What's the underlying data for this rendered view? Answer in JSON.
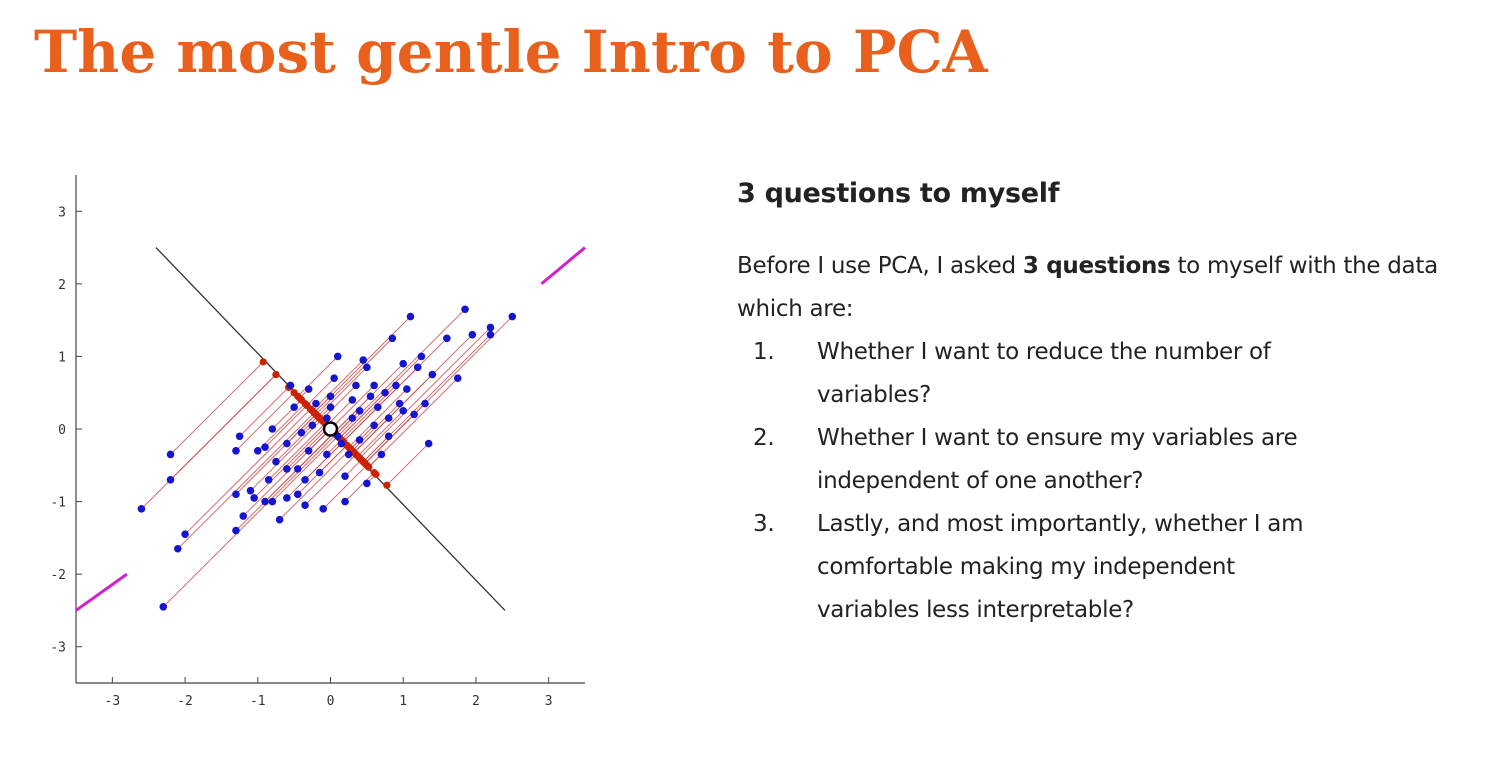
{
  "slide": {
    "title": "The most gentle Intro to PCA",
    "title_color": "#e8601c"
  },
  "section": {
    "heading": "3 questions to myself",
    "intro_before": "Before I use PCA, I asked ",
    "intro_bold": "3 questions",
    "intro_after": " to myself with the data which are:",
    "questions": [
      {
        "number": "1.",
        "text": "Whether I want to reduce the number of variables?"
      },
      {
        "number": "2.",
        "text": "Whether I want to ensure my variables are independent of one another?"
      },
      {
        "number": "3.",
        "text": "Lastly, and most importantly, whether I am comfortable making my independent variables less interpretable?"
      }
    ]
  },
  "chart_data": {
    "type": "scatter",
    "title": "",
    "xlabel": "",
    "ylabel": "",
    "xlim": [
      -3.5,
      3.5
    ],
    "ylim": [
      -3.5,
      3.5
    ],
    "xticks": [
      "-3",
      "-2",
      "-1",
      "0",
      "1",
      "2",
      "3"
    ],
    "yticks": [
      "3",
      "2",
      "1",
      "0",
      "-1",
      "-2",
      "-3"
    ],
    "grid": false,
    "colors": {
      "points": "#1515d0",
      "projection_lines": "#d04040",
      "projections": "#cc2200",
      "principal_axis": "#d020d0",
      "orthogonal_axis": "#333333",
      "mean_marker": "#000000"
    },
    "mean": [
      0.0,
      0.0
    ],
    "principal_axis_direction": [
      0.707,
      0.707
    ],
    "principal_axis_segments": [
      [
        [
          -3.5,
          -2.5
        ],
        [
          -2.8,
          -2.0
        ]
      ],
      [
        [
          2.9,
          2.0
        ],
        [
          3.5,
          2.5
        ]
      ]
    ],
    "orthogonal_axis_segment": [
      [
        -2.4,
        2.5
      ],
      [
        2.4,
        -2.5
      ]
    ],
    "points": [
      [
        -2.6,
        -1.1
      ],
      [
        -2.2,
        -0.7
      ],
      [
        -2.2,
        -0.35
      ],
      [
        -2.3,
        -2.45
      ],
      [
        -2.1,
        -1.65
      ],
      [
        -2.0,
        -1.45
      ],
      [
        -1.3,
        -1.4
      ],
      [
        -1.2,
        -1.2
      ],
      [
        -1.3,
        -0.9
      ],
      [
        -1.1,
        -0.85
      ],
      [
        -1.05,
        -0.95
      ],
      [
        -1.25,
        -0.1
      ],
      [
        -1.3,
        -0.3
      ],
      [
        -0.9,
        -0.25
      ],
      [
        -0.8,
        0.0
      ],
      [
        -0.75,
        -0.45
      ],
      [
        -0.85,
        -0.7
      ],
      [
        -0.8,
        -1.0
      ],
      [
        -0.7,
        -1.25
      ],
      [
        -0.6,
        -0.95
      ],
      [
        -0.6,
        -0.2
      ],
      [
        -0.5,
        0.3
      ],
      [
        -0.55,
        0.6
      ],
      [
        -0.45,
        -0.55
      ],
      [
        -0.45,
        -0.9
      ],
      [
        -0.35,
        -1.05
      ],
      [
        -0.3,
        -0.3
      ],
      [
        -0.25,
        0.05
      ],
      [
        -0.3,
        0.55
      ],
      [
        -0.2,
        0.35
      ],
      [
        -0.15,
        -0.6
      ],
      [
        -0.1,
        -1.1
      ],
      [
        -0.05,
        -0.35
      ],
      [
        0.0,
        0.45
      ],
      [
        0.0,
        0.3
      ],
      [
        0.05,
        0.7
      ],
      [
        0.1,
        1.0
      ],
      [
        0.15,
        -0.2
      ],
      [
        0.2,
        -0.65
      ],
      [
        0.2,
        -1.0
      ],
      [
        0.25,
        -0.35
      ],
      [
        0.3,
        0.15
      ],
      [
        0.35,
        0.6
      ],
      [
        0.4,
        0.25
      ],
      [
        0.4,
        -0.15
      ],
      [
        0.45,
        0.95
      ],
      [
        0.5,
        -0.75
      ],
      [
        0.55,
        0.45
      ],
      [
        0.6,
        0.05
      ],
      [
        0.6,
        0.6
      ],
      [
        0.65,
        0.3
      ],
      [
        0.7,
        -0.35
      ],
      [
        0.75,
        0.5
      ],
      [
        0.8,
        0.15
      ],
      [
        0.85,
        1.25
      ],
      [
        0.9,
        0.6
      ],
      [
        0.95,
        0.35
      ],
      [
        1.0,
        0.9
      ],
      [
        1.05,
        0.55
      ],
      [
        1.1,
        1.55
      ],
      [
        1.15,
        0.2
      ],
      [
        1.2,
        0.85
      ],
      [
        1.25,
        1.0
      ],
      [
        1.3,
        0.35
      ],
      [
        1.35,
        -0.2
      ],
      [
        1.4,
        0.75
      ],
      [
        1.6,
        1.25
      ],
      [
        1.75,
        0.7
      ],
      [
        1.85,
        1.65
      ],
      [
        1.95,
        1.3
      ],
      [
        2.2,
        1.4
      ],
      [
        2.2,
        1.3
      ],
      [
        2.5,
        1.55
      ],
      [
        -0.05,
        0.15
      ],
      [
        0.3,
        0.4
      ],
      [
        -0.6,
        -0.55
      ],
      [
        0.1,
        -0.1
      ],
      [
        -0.9,
        -1.0
      ],
      [
        -0.4,
        -0.05
      ],
      [
        0.5,
        0.85
      ],
      [
        -1.0,
        -0.3
      ],
      [
        -0.35,
        -0.7
      ],
      [
        0.8,
        -0.1
      ],
      [
        1.0,
        0.25
      ]
    ]
  }
}
